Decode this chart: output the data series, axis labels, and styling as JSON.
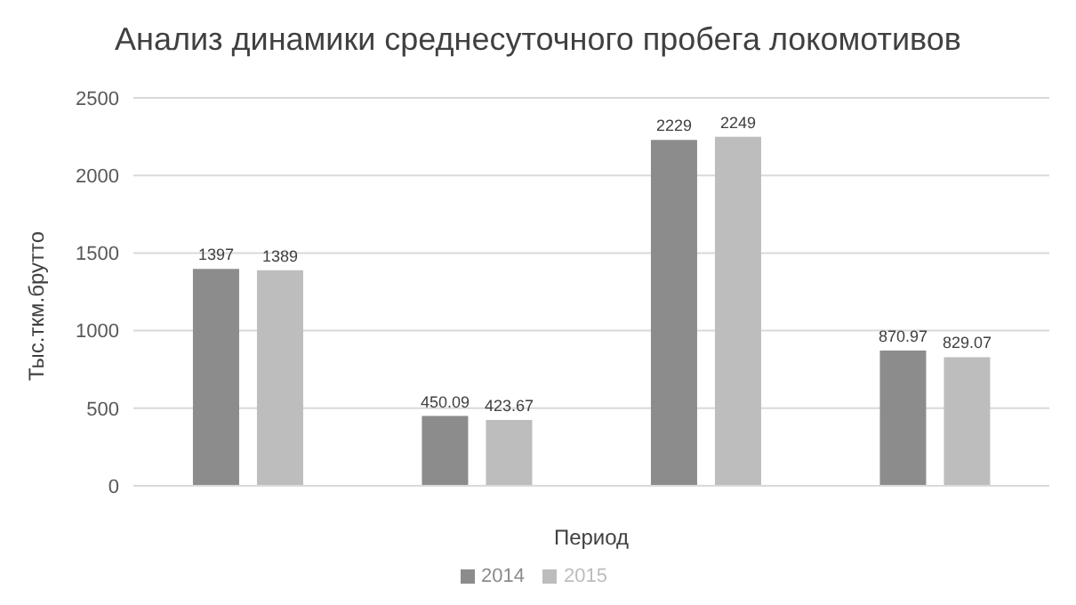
{
  "chart_data": {
    "type": "bar",
    "title": "Анализ динамики среднесуточного пробега локомотивов",
    "xlabel": "Период",
    "ylabel": "Тыс.ткм.брутто",
    "categories": [
      null,
      null,
      null,
      null
    ],
    "series": [
      {
        "name": "2014",
        "color": "#8c8c8c",
        "values": [
          1397,
          450.09,
          2229,
          870.97
        ]
      },
      {
        "name": "2015",
        "color": "#bdbdbd",
        "values": [
          1389,
          423.67,
          2249,
          829.07
        ]
      }
    ],
    "ylim": [
      0,
      2500
    ],
    "yticks": [
      0,
      500,
      1000,
      1500,
      2000,
      2500
    ],
    "grid": "y",
    "legend": "bottom",
    "data_labels": true
  }
}
